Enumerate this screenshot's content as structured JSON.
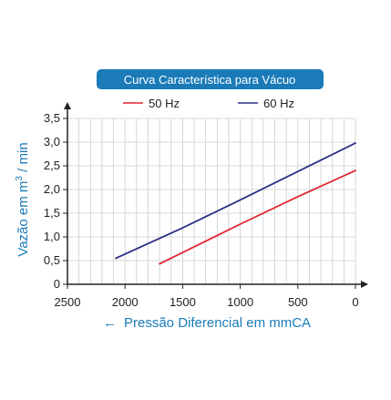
{
  "chart_data": {
    "type": "line",
    "title": "Curva Característica para Vácuo",
    "xlabel": "Pressão Diferencial em mmCA",
    "ylabel": "Vazão em m³ / min",
    "ylabel_main": "Vazão em m",
    "ylabel_sup": "3",
    "ylabel_tail": " / min",
    "x_direction_arrow": "←",
    "xlim": [
      2500,
      0
    ],
    "ylim": [
      0,
      3.5
    ],
    "x_ticks": [
      "2500",
      "2000",
      "1500",
      "1000",
      "500",
      "0"
    ],
    "x_tick_values": [
      2500,
      2000,
      1500,
      1000,
      500,
      0
    ],
    "y_ticks": [
      "0",
      "0,5",
      "1,0",
      "1,5",
      "2,0",
      "2,5",
      "3,0",
      "3,5"
    ],
    "y_tick_values": [
      0,
      0.5,
      1.0,
      1.5,
      2.0,
      2.5,
      3.0,
      3.5
    ],
    "grid": true,
    "legend_position": "top-center",
    "series": [
      {
        "name": "50 Hz",
        "color": "#e0262e",
        "x": [
          1700,
          1000,
          500,
          0
        ],
        "y": [
          0.43,
          1.27,
          1.85,
          2.4
        ]
      },
      {
        "name": "60 Hz",
        "color": "#2b2f85",
        "x": [
          2080,
          1500,
          1000,
          500,
          0
        ],
        "y": [
          0.55,
          1.19,
          1.78,
          2.38,
          2.98
        ]
      }
    ],
    "colors": {
      "title_bg": "#1a7bb8",
      "axis_label": "#1a7bb8",
      "grid": "#cccccc",
      "axis": "#222222"
    }
  }
}
